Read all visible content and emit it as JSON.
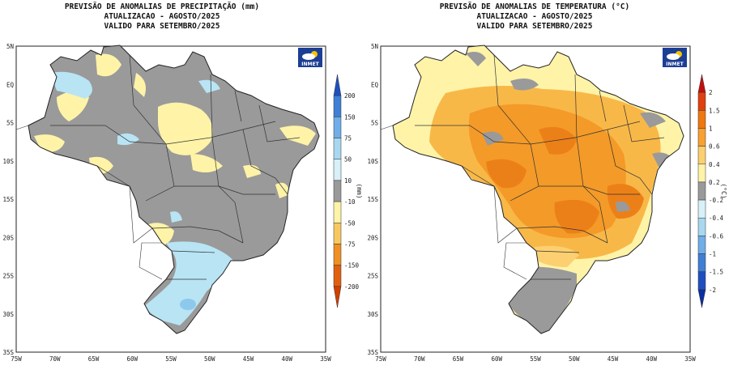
{
  "precip_panel": {
    "title_line1": "PREVISÃO DE ANOMALIAS DE PRECIPITAÇÃO (mm)",
    "title_line2": "ATUALIZACAO - AGOSTO/2025",
    "title_line3": "VALIDO PARA SETEMBRO/2025",
    "logo_text": "INMET",
    "unit_label": "(mm)",
    "lat_ticks": [
      "5N",
      "EQ",
      "5S",
      "10S",
      "15S",
      "20S",
      "25S",
      "30S",
      "35S"
    ],
    "lon_ticks": [
      "75W",
      "70W",
      "65W",
      "60W",
      "55W",
      "50W",
      "45W",
      "40W",
      "35W"
    ],
    "colorbar": {
      "labels": [
        "200",
        "150",
        "75",
        "50",
        "10",
        "-10",
        "-50",
        "-75",
        "-150",
        "-200"
      ],
      "colors": [
        "#1f4fbf",
        "#3f7fd6",
        "#6faee8",
        "#a8d8f0",
        "#d8f0f8",
        "#9a9a9a",
        "#fff3a8",
        "#f8c860",
        "#f09020",
        "#e06010",
        "#d04000"
      ]
    }
  },
  "temp_panel": {
    "title_line1": "PREVISÃO DE ANOMALIAS DE TEMPERATURA (°C)",
    "title_line2": "ATUALIZACAO - AGOSTO/2025",
    "title_line3": "VALIDO PARA SETEMBRO/2025",
    "logo_text": "INMET",
    "unit_label": "(°C)",
    "lat_ticks": [
      "5N",
      "EQ",
      "5S",
      "10S",
      "15S",
      "20S",
      "25S",
      "30S",
      "35S"
    ],
    "lon_ticks": [
      "75W",
      "70W",
      "65W",
      "60W",
      "55W",
      "50W",
      "45W",
      "40W",
      "35W"
    ],
    "colorbar": {
      "labels": [
        "2",
        "1.5",
        "1",
        "0.6",
        "0.4",
        "0.2",
        "-0.2",
        "-0.4",
        "-0.6",
        "-1",
        "-1.5",
        "-2"
      ],
      "colors": [
        "#c01010",
        "#e04010",
        "#f07810",
        "#f8a030",
        "#fcd070",
        "#fff3a8",
        "#9a9a9a",
        "#d8f0f8",
        "#a8d8f0",
        "#6faee8",
        "#3f7fd6",
        "#1f4fbf",
        "#0a2fa0"
      ]
    }
  }
}
